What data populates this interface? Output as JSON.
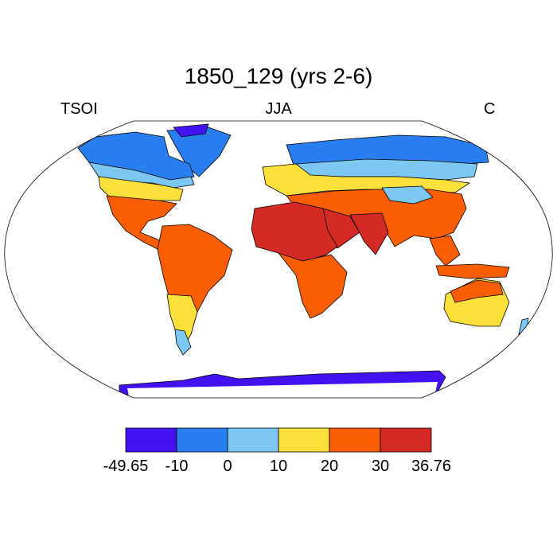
{
  "title": "1850_129 (yrs 2-6)",
  "left_label": "TSOI",
  "center_label": "JJA",
  "right_label": "C",
  "colorbar": {
    "colors": [
      "#4411f0",
      "#2a7ff0",
      "#7cc8f2",
      "#fde03c",
      "#fb5e02",
      "#d42a26"
    ],
    "labels": [
      "-49.65",
      "-10",
      "0",
      "10",
      "20",
      "30",
      "36.76"
    ]
  },
  "colors": {
    "land_outline": "#000000",
    "frame": "#000000"
  }
}
